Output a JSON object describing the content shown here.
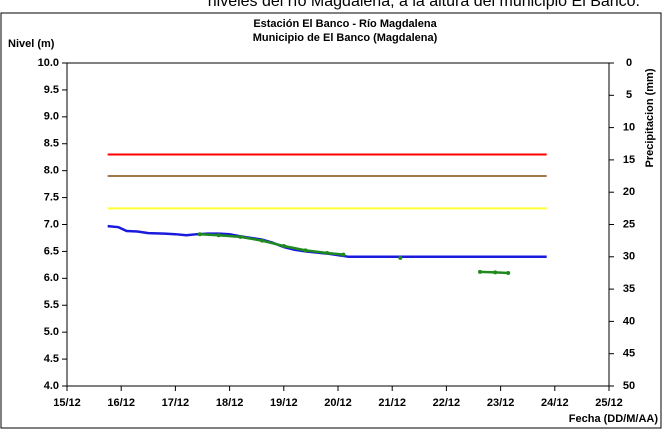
{
  "caption": "niveles del río Magdalena, a la altura del municipio El Banco.",
  "chart_data": {
    "type": "line",
    "title": "Estación El Banco - Río Magdalena",
    "subtitle": "Municipio de El Banco (Magdalena)",
    "ylabel": "Nivel (m)",
    "y2label": "Precipitacion (mm)",
    "xlabel": "Fecha (DD/M/AA)",
    "xlim": [
      15,
      25
    ],
    "xticks": [
      {
        "value": 15,
        "label": "15/12"
      },
      {
        "value": 16,
        "label": "16/12"
      },
      {
        "value": 17,
        "label": "17/12"
      },
      {
        "value": 18,
        "label": "18/12"
      },
      {
        "value": 19,
        "label": "19/12"
      },
      {
        "value": 20,
        "label": "20/12"
      },
      {
        "value": 21,
        "label": "21/12"
      },
      {
        "value": 22,
        "label": "22/12"
      },
      {
        "value": 23,
        "label": "23/12"
      },
      {
        "value": 24,
        "label": "24/12"
      },
      {
        "value": 25,
        "label": "25/12"
      }
    ],
    "ylim": [
      4,
      10
    ],
    "yticks": [
      {
        "value": 4,
        "label": "4.0"
      },
      {
        "value": 4.5,
        "label": "4.5"
      },
      {
        "value": 5,
        "label": "5.0"
      },
      {
        "value": 5.5,
        "label": "5.5"
      },
      {
        "value": 6,
        "label": "6.0"
      },
      {
        "value": 6.5,
        "label": "6.5"
      },
      {
        "value": 7,
        "label": "7.0"
      },
      {
        "value": 7.5,
        "label": "7.5"
      },
      {
        "value": 8,
        "label": "8.0"
      },
      {
        "value": 8.5,
        "label": "8.5"
      },
      {
        "value": 9,
        "label": "9.0"
      },
      {
        "value": 9.5,
        "label": "9.5"
      },
      {
        "value": 10,
        "label": "10.0"
      }
    ],
    "y2lim": [
      0,
      50
    ],
    "y2_reversed": true,
    "y2ticks": [
      0,
      5,
      10,
      15,
      20,
      25,
      30,
      35,
      40,
      45,
      50
    ],
    "reference_lines": [
      {
        "value": 8.3,
        "color": "#ff0000",
        "x": [
          15.75,
          23.85
        ]
      },
      {
        "value": 7.9,
        "color": "#a0784a",
        "x": [
          15.75,
          23.85
        ]
      },
      {
        "value": 7.3,
        "color": "#ffff33",
        "x": [
          15.75,
          23.85
        ]
      }
    ],
    "series": [
      {
        "color": "#1a1adc",
        "markers": false,
        "x": [
          15.75,
          15.95,
          16.1,
          16.3,
          16.5,
          16.8,
          17.0,
          17.2,
          17.4,
          17.6,
          17.8,
          18.0,
          18.2,
          18.4,
          18.6,
          18.8,
          19.0,
          19.2,
          19.4,
          19.6,
          19.8,
          20.0,
          20.2,
          20.5,
          21.5,
          22.5,
          23.85
        ],
        "values": [
          6.97,
          6.95,
          6.88,
          6.87,
          6.84,
          6.83,
          6.82,
          6.8,
          6.82,
          6.83,
          6.83,
          6.82,
          6.78,
          6.75,
          6.72,
          6.66,
          6.58,
          6.53,
          6.5,
          6.48,
          6.46,
          6.43,
          6.4,
          6.4,
          6.4,
          6.4,
          6.4
        ]
      },
      {
        "color": "#1f8a1f",
        "markers": true,
        "x": [
          17.45,
          17.8,
          18.2,
          18.6,
          19.0,
          19.4,
          19.8,
          20.1,
          20.6,
          21.15,
          21.6,
          22.62,
          22.9,
          23.14
        ],
        "values": [
          6.82,
          6.8,
          6.77,
          6.7,
          6.6,
          6.52,
          6.47,
          6.44,
          null,
          6.38,
          null,
          6.12,
          6.11,
          6.1
        ]
      }
    ]
  }
}
